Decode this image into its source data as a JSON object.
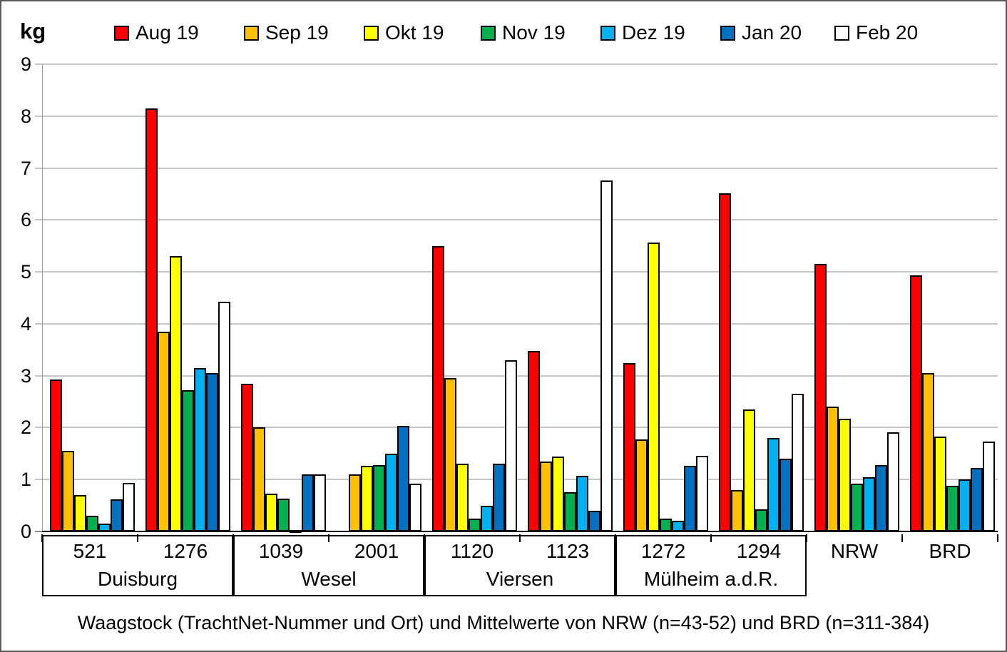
{
  "unit_label": "kg",
  "caption": "Waagstock (TrachtNet-Nummer und Ort) und Mittelwerte von NRW (n=43-52) und BRD (n=311-384)",
  "colors": {
    "aug": "#FF0000",
    "sep": "#FFC000",
    "okt": "#FFFF00",
    "nov": "#00B050",
    "dez": "#00B0F0",
    "jan": "#0070C0",
    "feb": "#FFFFFF",
    "gridline": "#C6C6C6",
    "axis": "#000000"
  },
  "chart_data": {
    "type": "bar",
    "ylabel": "kg",
    "ylim": [
      0,
      9
    ],
    "yticks": [
      0,
      1,
      2,
      3,
      4,
      5,
      6,
      7,
      8,
      9
    ],
    "grid": true,
    "legend_position": "top",
    "categories": [
      "521",
      "1276",
      "1039",
      "2001",
      "1120",
      "1123",
      "1272",
      "1294",
      "NRW",
      "BRD"
    ],
    "group_boxes": [
      {
        "label": "Duisburg",
        "from": 0,
        "to": 1
      },
      {
        "label": "Wesel",
        "from": 2,
        "to": 3
      },
      {
        "label": "Viersen",
        "from": 4,
        "to": 5
      },
      {
        "label": "Mülheim a.d.R.",
        "from": 6,
        "to": 7
      }
    ],
    "series": [
      {
        "name": "Aug 19",
        "color": "#FF0000",
        "values": [
          2.93,
          8.15,
          2.85,
          null,
          5.5,
          3.48,
          3.24,
          6.51,
          5.15,
          4.93
        ]
      },
      {
        "name": "Sep 19",
        "color": "#FFC000",
        "values": [
          1.55,
          3.85,
          2.0,
          1.1,
          2.95,
          1.35,
          1.77,
          0.8,
          2.4,
          3.05
        ]
      },
      {
        "name": "Okt 19",
        "color": "#FFFF00",
        "values": [
          0.7,
          5.3,
          0.73,
          1.26,
          1.3,
          1.44,
          5.57,
          2.35,
          2.17,
          1.83
        ]
      },
      {
        "name": "Nov 19",
        "color": "#00B050",
        "values": [
          0.3,
          2.72,
          0.63,
          1.28,
          0.25,
          0.75,
          0.25,
          0.42,
          0.92,
          0.88
        ]
      },
      {
        "name": "Dez 19",
        "color": "#00B0F0",
        "values": [
          0.15,
          3.15,
          0.02,
          1.5,
          0.5,
          1.07,
          0.2,
          1.8,
          1.05,
          1.0
        ]
      },
      {
        "name": "Jan 20",
        "color": "#0070C0",
        "values": [
          0.62,
          3.05,
          1.1,
          2.03,
          1.31,
          0.4,
          1.27,
          1.4,
          1.28,
          1.22
        ]
      },
      {
        "name": "Feb 20",
        "color": "#FFFFFF",
        "values": [
          0.93,
          4.42,
          1.1,
          0.92,
          3.3,
          6.76,
          1.45,
          2.65,
          1.91,
          1.73
        ]
      }
    ]
  }
}
